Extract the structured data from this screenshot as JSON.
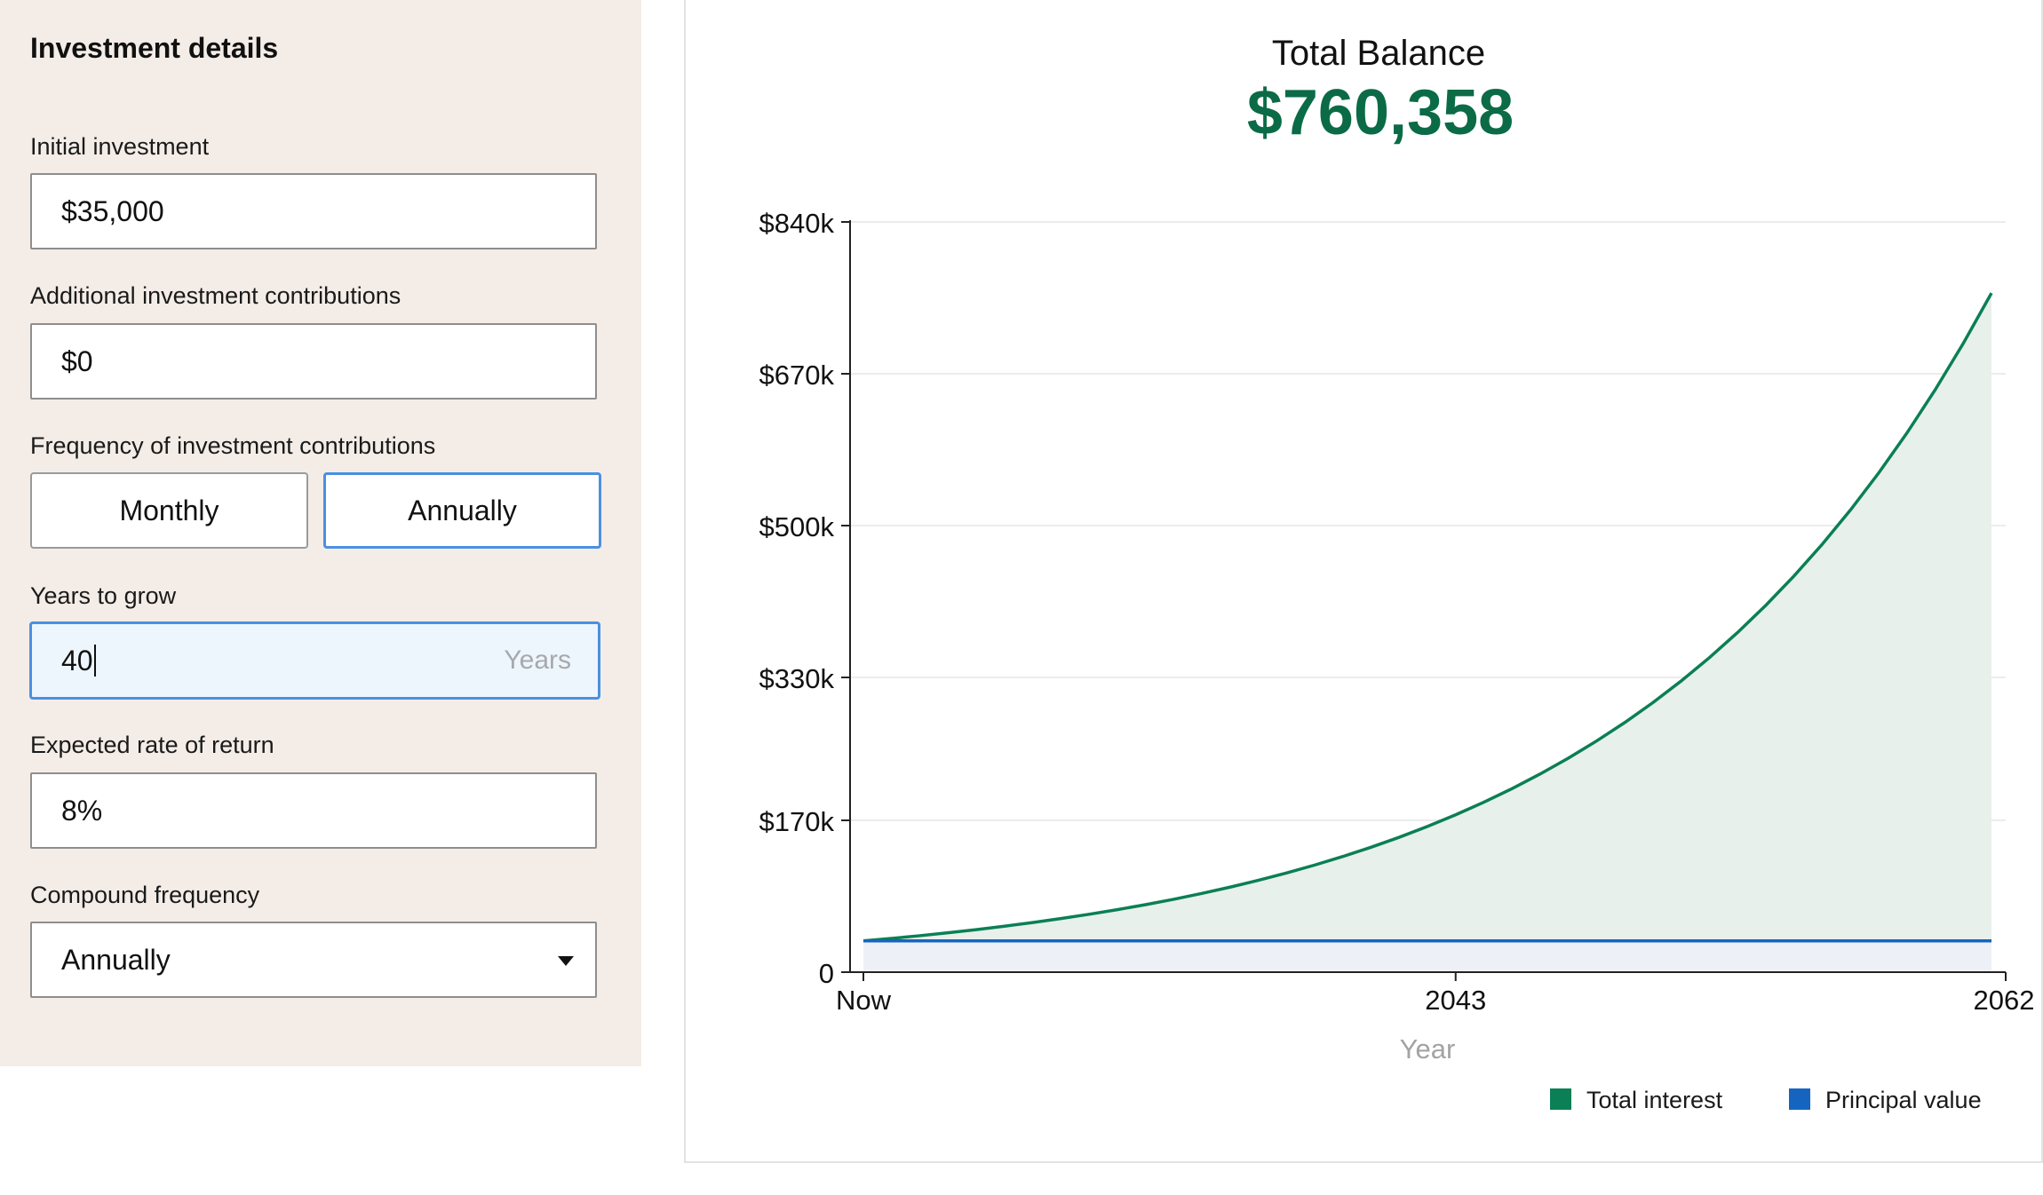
{
  "panel": {
    "title": "Investment details",
    "initial_investment": {
      "label": "Initial investment",
      "value": "$35,000"
    },
    "additional_contributions": {
      "label": "Additional investment contributions",
      "value": "$0"
    },
    "frequency": {
      "label": "Frequency of investment contributions",
      "options": [
        "Monthly",
        "Annually"
      ],
      "selected": "Annually"
    },
    "years_to_grow": {
      "label": "Years to grow",
      "value": "40",
      "suffix": "Years"
    },
    "rate_of_return": {
      "label": "Expected rate of return",
      "value": "8%"
    },
    "compound_frequency": {
      "label": "Compound frequency",
      "value": "Annually"
    }
  },
  "summary": {
    "label": "Total Balance",
    "value": "$760,358"
  },
  "colors": {
    "panel_bg": "#f4ede7",
    "interest": "#0b7f55",
    "interest_fill": "#e8f0ec",
    "principal": "#1565c0",
    "principal_fill": "#eef0f7",
    "focus": "#4a90e2",
    "total_value": "#0b6b46"
  },
  "chart_data": {
    "type": "area",
    "xlabel": "Year",
    "x_tick_labels": [
      "Now",
      "2043",
      "2062"
    ],
    "ylabel": "",
    "y_tick_labels": [
      "0",
      "$170k",
      "$330k",
      "$500k",
      "$670k",
      "$840k"
    ],
    "y_ticks": [
      0,
      170000,
      330000,
      500000,
      670000,
      840000
    ],
    "ylim": [
      0,
      840000
    ],
    "x": [
      2022,
      2023,
      2024,
      2025,
      2026,
      2027,
      2028,
      2029,
      2030,
      2031,
      2032,
      2033,
      2034,
      2035,
      2036,
      2037,
      2038,
      2039,
      2040,
      2041,
      2042,
      2043,
      2044,
      2045,
      2046,
      2047,
      2048,
      2049,
      2050,
      2051,
      2052,
      2053,
      2054,
      2055,
      2056,
      2057,
      2058,
      2059,
      2060,
      2061,
      2062
    ],
    "xlim": [
      2022,
      2062
    ],
    "grid": true,
    "legend_position": "bottom-right",
    "series": [
      {
        "name": "Total interest",
        "values": [
          35000,
          37800,
          40824,
          44090,
          47617,
          51427,
          55541,
          59984,
          64783,
          69966,
          75563,
          81608,
          88137,
          95188,
          102803,
          111027,
          119910,
          129502,
          139863,
          151052,
          163136,
          176187,
          190282,
          205505,
          221945,
          239701,
          258877,
          279588,
          301955,
          326111,
          352200,
          380376,
          410806,
          443670,
          479164,
          517497,
          558897,
          603609,
          651897,
          704049,
          760358
        ]
      },
      {
        "name": "Principal value",
        "values": [
          35000,
          35000,
          35000,
          35000,
          35000,
          35000,
          35000,
          35000,
          35000,
          35000,
          35000,
          35000,
          35000,
          35000,
          35000,
          35000,
          35000,
          35000,
          35000,
          35000,
          35000,
          35000,
          35000,
          35000,
          35000,
          35000,
          35000,
          35000,
          35000,
          35000,
          35000,
          35000,
          35000,
          35000,
          35000,
          35000,
          35000,
          35000,
          35000,
          35000,
          35000
        ]
      }
    ]
  }
}
